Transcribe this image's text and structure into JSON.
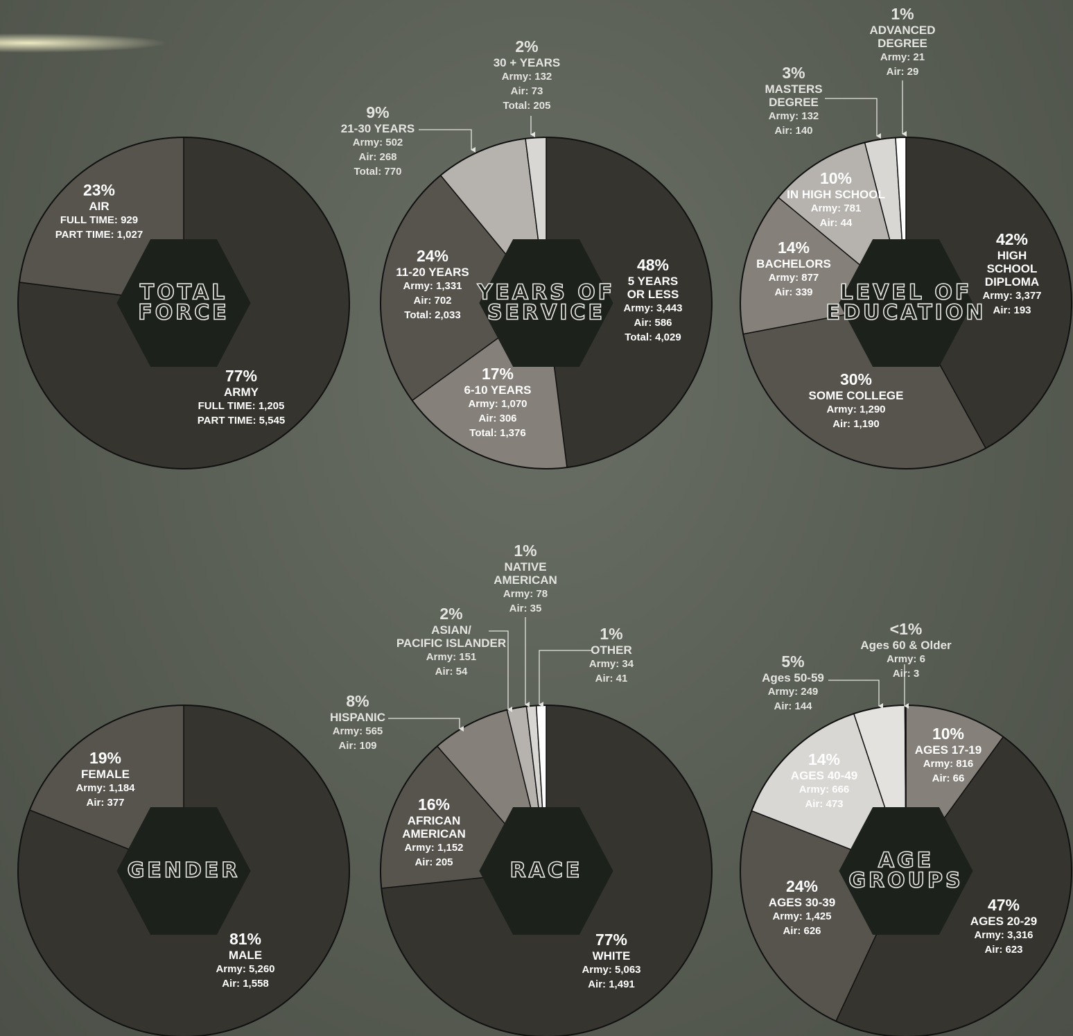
{
  "chart_data": [
    {
      "type": "pie",
      "title": "TOTAL\nFORCE",
      "categories": [
        "ARMY",
        "AIR"
      ],
      "values": [
        77,
        23
      ],
      "value_labels": [
        "77%",
        "23%"
      ],
      "details": [
        [
          "FULL TIME: 1,205",
          "PART TIME: 5,545"
        ],
        [
          "FULL TIME: 929",
          "PART TIME: 1,027"
        ]
      ],
      "colors": [
        "#35342e",
        "#57534d"
      ]
    },
    {
      "type": "pie",
      "title": "YEARS OF\nSERVICE",
      "categories": [
        "5 YEARS\nOR LESS",
        "6-10 YEARS",
        "11-20 YEARS",
        "21-30 YEARS",
        "30 + YEARS"
      ],
      "values": [
        48,
        17,
        24,
        9,
        2
      ],
      "value_labels": [
        "48%",
        "17%",
        "24%",
        "9%",
        "2%"
      ],
      "details": [
        [
          "Army: 3,443",
          "Air: 586",
          "Total: 4,029"
        ],
        [
          "Army: 1,070",
          "Air: 306",
          "Total: 1,376"
        ],
        [
          "Army: 1,331",
          "Air: 702",
          "Total: 2,033"
        ],
        [
          "Army: 502",
          "Air: 268",
          "Total: 770"
        ],
        [
          "Army: 132",
          "Air: 73",
          "Total: 205"
        ]
      ],
      "colors": [
        "#35342e",
        "#858079",
        "#57534d",
        "#b6b3ae",
        "#d9d7d3"
      ]
    },
    {
      "type": "pie",
      "title": "LEVEL OF\nEDUCATION",
      "categories": [
        "HIGH SCHOOL\nDIPLOMA",
        "SOME COLLEGE",
        "BACHELORS",
        "IN HIGH SCHOOL",
        "MASTERS\nDEGREE",
        "ADVANCED\nDEGREE"
      ],
      "values": [
        42,
        30,
        14,
        10,
        3,
        1
      ],
      "value_labels": [
        "42%",
        "30%",
        "14%",
        "10%",
        "3%",
        "1%"
      ],
      "details": [
        [
          "Army: 3,377",
          "Air: 193"
        ],
        [
          "Army: 1,290",
          "Air: 1,190"
        ],
        [
          "Army: 877",
          "Air: 339"
        ],
        [
          "Army: 781",
          "Air: 44"
        ],
        [
          "Army: 132",
          "Air: 140"
        ],
        [
          "Army: 21",
          "Air: 29"
        ]
      ],
      "colors": [
        "#35342e",
        "#57534d",
        "#858079",
        "#b6b3ae",
        "#d9d7d3",
        "#ffffff"
      ]
    },
    {
      "type": "pie",
      "title": "GENDER",
      "categories": [
        "MALE",
        "FEMALE"
      ],
      "values": [
        81,
        19
      ],
      "value_labels": [
        "81%",
        "19%"
      ],
      "details": [
        [
          "Army: 5,260",
          "Air: 1,558"
        ],
        [
          "Army: 1,184",
          "Air: 377"
        ]
      ],
      "colors": [
        "#35342e",
        "#57534d"
      ]
    },
    {
      "type": "pie",
      "title": "RACE",
      "categories": [
        "WHITE",
        "AFRICAN\nAMERICAN",
        "HISPANIC",
        "ASIAN/\nPACIFIC ISLANDER",
        "NATIVE\nAMERICAN",
        "OTHER"
      ],
      "values": [
        77,
        16,
        8,
        2,
        1,
        1
      ],
      "value_labels": [
        "77%",
        "16%",
        "8%",
        "2%",
        "1%",
        "1%"
      ],
      "details": [
        [
          "Army: 5,063",
          "Air: 1,491"
        ],
        [
          "Army: 1,152",
          "Air: 205"
        ],
        [
          "Army: 565",
          "Air: 109"
        ],
        [
          "Army: 151",
          "Air: 54"
        ],
        [
          "Army: 78",
          "Air: 35"
        ],
        [
          "Army: 34",
          "Air: 41"
        ]
      ],
      "colors": [
        "#35342e",
        "#57534d",
        "#858079",
        "#b6b3ae",
        "#d9d7d3",
        "#ffffff"
      ]
    },
    {
      "type": "pie",
      "title": "AGE\nGROUPS",
      "categories": [
        "AGES 17-19",
        "AGES 20-29",
        "AGES 30-39",
        "AGES 40-49",
        "Ages 50-59",
        "Ages 60 & Older"
      ],
      "values": [
        10,
        47,
        24,
        14,
        5,
        0.1
      ],
      "value_labels": [
        "10%",
        "47%",
        "24%",
        "14%",
        "5%",
        "<1%"
      ],
      "details": [
        [
          "Army: 816",
          "Air: 66"
        ],
        [
          "Army: 3,316",
          "Air: 623"
        ],
        [
          "Army: 1,425",
          "Air: 626"
        ],
        [
          "Army: 666",
          "Air: 473"
        ],
        [
          "Army: 249",
          "Air: 144"
        ],
        [
          "Army: 6",
          "Air: 3"
        ]
      ],
      "colors": [
        "#858079",
        "#35342e",
        "#57534d",
        "#d9d7d3",
        "#e4e2df",
        "#ffffff"
      ]
    }
  ]
}
